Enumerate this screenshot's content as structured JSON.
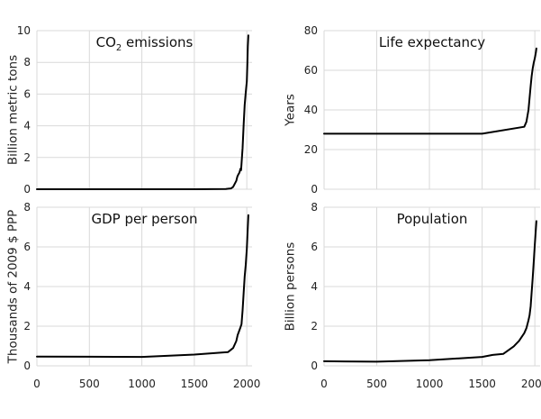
{
  "chart_data": [
    {
      "type": "line",
      "title": "CO2 emissions",
      "title_main": "CO",
      "title_sub": "2",
      "title_rest": " emissions",
      "xlabel": "",
      "ylabel": "Billion metric tons",
      "xlim": [
        0,
        2050
      ],
      "ylim": [
        0,
        10
      ],
      "xticks": [
        0,
        500,
        1000,
        1500,
        2000
      ],
      "yticks": [
        0,
        2,
        4,
        6,
        8,
        10
      ],
      "show_xtick_labels": false,
      "x": [
        0,
        500,
        1000,
        1500,
        1800,
        1850,
        1870,
        1900,
        1910,
        1920,
        1930,
        1940,
        1945,
        1950,
        1960,
        1970,
        1980,
        1990,
        2000,
        2005,
        2010,
        2015
      ],
      "values": [
        0,
        0,
        0,
        0,
        0.01,
        0.05,
        0.15,
        0.53,
        0.8,
        0.93,
        1.05,
        1.3,
        1.2,
        1.6,
        2.6,
        4.1,
        5.3,
        6.1,
        6.8,
        7.9,
        9.0,
        9.7
      ]
    },
    {
      "type": "line",
      "title": "Life expectancy",
      "xlabel": "",
      "ylabel": "Years",
      "xlim": [
        0,
        2050
      ],
      "ylim": [
        0,
        80
      ],
      "xticks": [
        0,
        500,
        1000,
        1500,
        2000
      ],
      "yticks": [
        0,
        20,
        40,
        60,
        80
      ],
      "show_xtick_labels": false,
      "x": [
        0,
        500,
        1000,
        1500,
        1900,
        1920,
        1940,
        1950,
        1960,
        1970,
        1980,
        1990,
        2000,
        2010,
        2015
      ],
      "values": [
        28,
        28,
        28,
        28,
        31.5,
        34,
        40,
        46,
        52,
        57,
        61,
        64,
        66,
        69,
        71
      ]
    },
    {
      "type": "line",
      "title": "GDP per person",
      "xlabel": "",
      "ylabel": "Thousands of 2009 $ PPP",
      "xlim": [
        0,
        2050
      ],
      "ylim": [
        0,
        8
      ],
      "xticks": [
        0,
        500,
        1000,
        1500,
        2000
      ],
      "yticks": [
        0,
        2,
        4,
        6,
        8
      ],
      "show_xtick_labels": true,
      "x": [
        0,
        500,
        1000,
        1500,
        1820,
        1870,
        1900,
        1913,
        1940,
        1950,
        1960,
        1970,
        1980,
        1990,
        2000,
        2010,
        2015
      ],
      "values": [
        0.47,
        0.46,
        0.45,
        0.57,
        0.69,
        0.9,
        1.25,
        1.55,
        1.95,
        2.1,
        2.8,
        3.7,
        4.5,
        5.1,
        5.9,
        7.0,
        7.6
      ]
    },
    {
      "type": "line",
      "title": "Population",
      "xlabel": "",
      "ylabel": "Billion persons",
      "xlim": [
        0,
        2050
      ],
      "ylim": [
        0,
        8
      ],
      "xticks": [
        0,
        500,
        1000,
        1500,
        2000
      ],
      "yticks": [
        0,
        2,
        4,
        6,
        8
      ],
      "show_xtick_labels": true,
      "x": [
        0,
        500,
        1000,
        1500,
        1600,
        1700,
        1800,
        1850,
        1900,
        1920,
        1940,
        1950,
        1960,
        1970,
        1980,
        1990,
        2000,
        2010,
        2015
      ],
      "values": [
        0.23,
        0.21,
        0.28,
        0.45,
        0.55,
        0.6,
        0.98,
        1.26,
        1.65,
        1.9,
        2.3,
        2.55,
        3.0,
        3.7,
        4.45,
        5.3,
        6.1,
        6.9,
        7.3
      ]
    }
  ]
}
